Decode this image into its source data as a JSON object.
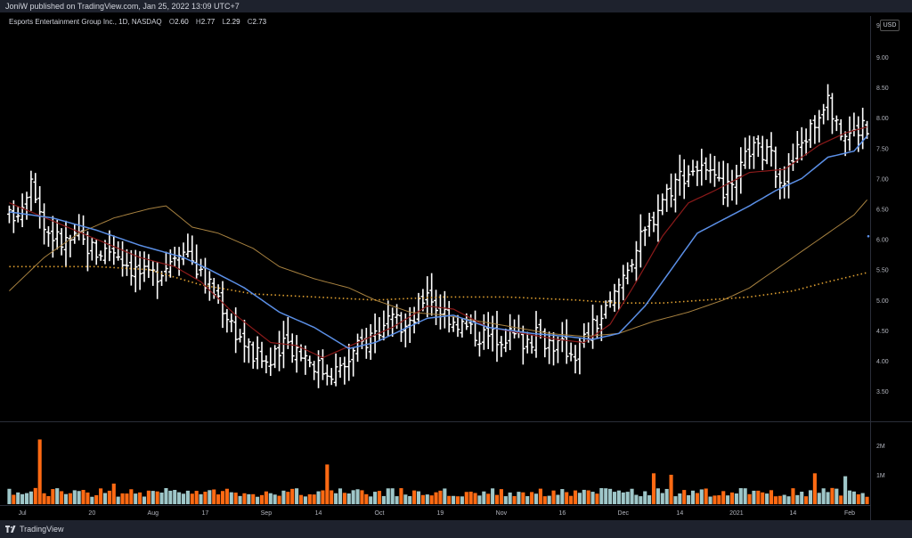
{
  "header": {
    "publisher": "JoniW published on TradingView.com, Jan 25, 2022 13:09 UTC+7"
  },
  "legend": {
    "symbol": "Esports Entertainment Group Inc., 1D, NASDAQ",
    "o_label": "O",
    "o": "2.60",
    "h_label": "H",
    "h": "2.77",
    "l_label": "L",
    "l": "2.29",
    "c_label": "C",
    "c": "2.73"
  },
  "currency": "USD",
  "footer": {
    "brand": "TradingView"
  },
  "colors": {
    "bar": "#ffffff",
    "ma_fast": "#8b1a1a",
    "ma_mid": "#5b8fe6",
    "ma_slow": "#a88240",
    "ma_dotted": "#e0a030",
    "vol_up": "#9fc7c9",
    "vol_down": "#ff6a13"
  },
  "chart_data": {
    "type": "ohlc_bar",
    "price_axis": {
      "ylim": [
        3.0,
        9.2
      ],
      "ticks": [
        "9",
        "9.00",
        "8.50",
        "8.00",
        "7.50",
        "7.00",
        "6.50",
        "6.00",
        "5.50",
        "5.00",
        "4.50",
        "4.00",
        "3.50"
      ]
    },
    "volume_axis": {
      "ticks": [
        "2M",
        "1M"
      ]
    },
    "x_ticks": [
      "Jul",
      "20",
      "Aug",
      "17",
      "Sep",
      "14",
      "Oct",
      "19",
      "Nov",
      "16",
      "Dec",
      "14",
      "2021",
      "14",
      "Feb"
    ],
    "close_anchors": [
      [
        0,
        6.35
      ],
      [
        3,
        6.6
      ],
      [
        5,
        7.1
      ],
      [
        8,
        6.2
      ],
      [
        12,
        5.95
      ],
      [
        16,
        6.0
      ],
      [
        20,
        5.8
      ],
      [
        24,
        5.85
      ],
      [
        28,
        5.55
      ],
      [
        32,
        5.35
      ],
      [
        36,
        5.6
      ],
      [
        40,
        5.95
      ],
      [
        44,
        5.4
      ],
      [
        48,
        5.05
      ],
      [
        52,
        4.5
      ],
      [
        56,
        4.1
      ],
      [
        60,
        3.95
      ],
      [
        64,
        4.3
      ],
      [
        68,
        4.1
      ],
      [
        72,
        3.85
      ],
      [
        76,
        3.85
      ],
      [
        80,
        4.2
      ],
      [
        84,
        4.5
      ],
      [
        88,
        4.6
      ],
      [
        92,
        4.55
      ],
      [
        96,
        5.2
      ],
      [
        98,
        4.9
      ],
      [
        102,
        4.7
      ],
      [
        106,
        4.5
      ],
      [
        110,
        4.4
      ],
      [
        114,
        4.45
      ],
      [
        118,
        4.35
      ],
      [
        122,
        4.4
      ],
      [
        126,
        4.25
      ],
      [
        130,
        4.15
      ],
      [
        134,
        4.55
      ],
      [
        138,
        4.9
      ],
      [
        142,
        5.6
      ],
      [
        146,
        6.1
      ],
      [
        150,
        6.7
      ],
      [
        154,
        7.05
      ],
      [
        158,
        7.2
      ],
      [
        162,
        6.9
      ],
      [
        166,
        6.75
      ],
      [
        170,
        7.5
      ],
      [
        174,
        7.4
      ],
      [
        178,
        7.0
      ],
      [
        182,
        7.6
      ],
      [
        186,
        8.05
      ],
      [
        188,
        8.5
      ],
      [
        190,
        7.8
      ],
      [
        194,
        7.75
      ],
      [
        196,
        7.9
      ],
      [
        197,
        7.75
      ]
    ],
    "moving_averages": {
      "red": [
        [
          0,
          6.6
        ],
        [
          10,
          6.3
        ],
        [
          20,
          6.0
        ],
        [
          30,
          5.7
        ],
        [
          38,
          5.55
        ],
        [
          44,
          5.3
        ],
        [
          52,
          4.75
        ],
        [
          60,
          4.3
        ],
        [
          66,
          4.25
        ],
        [
          72,
          4.05
        ],
        [
          80,
          4.3
        ],
        [
          88,
          4.55
        ],
        [
          96,
          4.9
        ],
        [
          102,
          4.85
        ],
        [
          110,
          4.55
        ],
        [
          118,
          4.45
        ],
        [
          126,
          4.35
        ],
        [
          132,
          4.3
        ],
        [
          138,
          4.6
        ],
        [
          144,
          5.3
        ],
        [
          150,
          6.05
        ],
        [
          156,
          6.6
        ],
        [
          162,
          6.8
        ],
        [
          170,
          7.1
        ],
        [
          178,
          7.15
        ],
        [
          186,
          7.55
        ],
        [
          192,
          7.75
        ],
        [
          197,
          7.85
        ]
      ],
      "blue": [
        [
          0,
          6.45
        ],
        [
          10,
          6.35
        ],
        [
          20,
          6.15
        ],
        [
          30,
          5.9
        ],
        [
          40,
          5.7
        ],
        [
          46,
          5.5
        ],
        [
          54,
          5.2
        ],
        [
          62,
          4.8
        ],
        [
          70,
          4.55
        ],
        [
          78,
          4.2
        ],
        [
          84,
          4.3
        ],
        [
          90,
          4.5
        ],
        [
          96,
          4.7
        ],
        [
          102,
          4.75
        ],
        [
          110,
          4.55
        ],
        [
          120,
          4.45
        ],
        [
          128,
          4.4
        ],
        [
          134,
          4.35
        ],
        [
          140,
          4.45
        ],
        [
          146,
          4.9
        ],
        [
          152,
          5.5
        ],
        [
          158,
          6.1
        ],
        [
          162,
          6.25
        ],
        [
          170,
          6.55
        ],
        [
          176,
          6.8
        ],
        [
          182,
          7.0
        ],
        [
          188,
          7.35
        ],
        [
          194,
          7.45
        ],
        [
          197,
          7.7
        ]
      ],
      "tan": [
        [
          0,
          5.15
        ],
        [
          8,
          5.7
        ],
        [
          16,
          6.1
        ],
        [
          24,
          6.35
        ],
        [
          32,
          6.5
        ],
        [
          36,
          6.55
        ],
        [
          42,
          6.2
        ],
        [
          48,
          6.1
        ],
        [
          56,
          5.85
        ],
        [
          62,
          5.55
        ],
        [
          70,
          5.35
        ],
        [
          78,
          5.2
        ],
        [
          84,
          5.0
        ],
        [
          92,
          4.8
        ],
        [
          100,
          4.75
        ],
        [
          108,
          4.65
        ],
        [
          116,
          4.55
        ],
        [
          124,
          4.45
        ],
        [
          132,
          4.4
        ],
        [
          140,
          4.45
        ],
        [
          148,
          4.65
        ],
        [
          156,
          4.8
        ],
        [
          164,
          5.0
        ],
        [
          170,
          5.2
        ],
        [
          176,
          5.5
        ],
        [
          182,
          5.8
        ],
        [
          188,
          6.1
        ],
        [
          194,
          6.4
        ],
        [
          197,
          6.65
        ]
      ],
      "dotted_yellow": [
        [
          0,
          5.55
        ],
        [
          20,
          5.55
        ],
        [
          32,
          5.5
        ],
        [
          44,
          5.25
        ],
        [
          56,
          5.1
        ],
        [
          70,
          5.05
        ],
        [
          84,
          5.0
        ],
        [
          100,
          5.05
        ],
        [
          114,
          5.05
        ],
        [
          130,
          5.0
        ],
        [
          140,
          4.95
        ],
        [
          150,
          4.95
        ],
        [
          160,
          5.0
        ],
        [
          170,
          5.05
        ],
        [
          180,
          5.15
        ],
        [
          188,
          5.3
        ],
        [
          197,
          5.45
        ]
      ]
    },
    "volume_spikes": [
      [
        7,
        2.2
      ],
      [
        24,
        0.7
      ],
      [
        47,
        0.5
      ],
      [
        73,
        1.35
      ],
      [
        148,
        1.05
      ],
      [
        152,
        1.0
      ],
      [
        185,
        1.05
      ],
      [
        189,
        0.55
      ],
      [
        192,
        0.95
      ]
    ],
    "bar_count": 198
  }
}
